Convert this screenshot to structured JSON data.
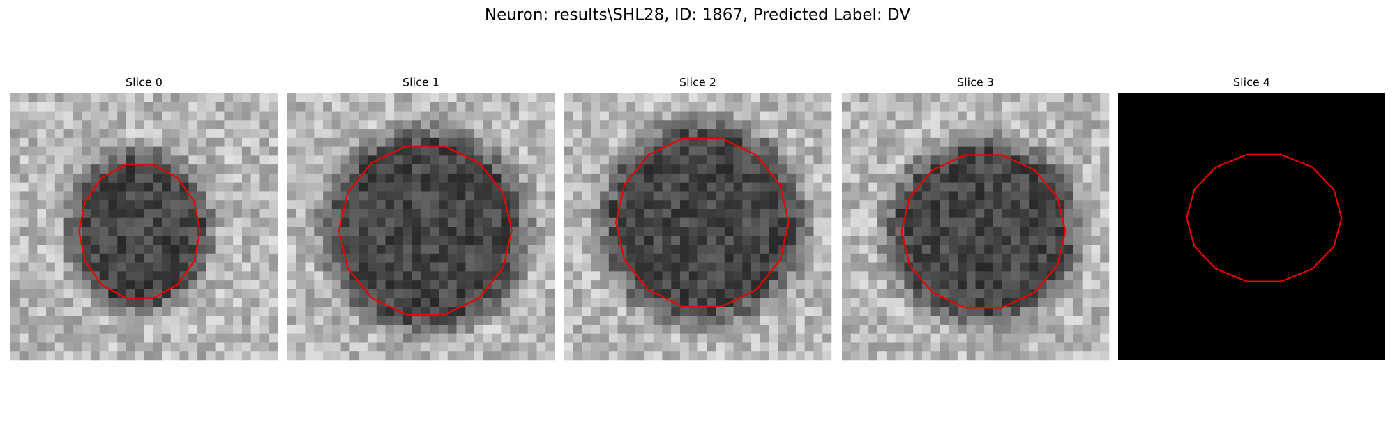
{
  "title": "Neuron: results\\SHL28, ID: 1867, Predicted Label: DV",
  "panels": [
    {
      "title": "Slice 0"
    },
    {
      "title": "Slice 1"
    },
    {
      "title": "Slice 2"
    },
    {
      "title": "Slice 3"
    },
    {
      "title": "Slice 4"
    }
  ]
}
